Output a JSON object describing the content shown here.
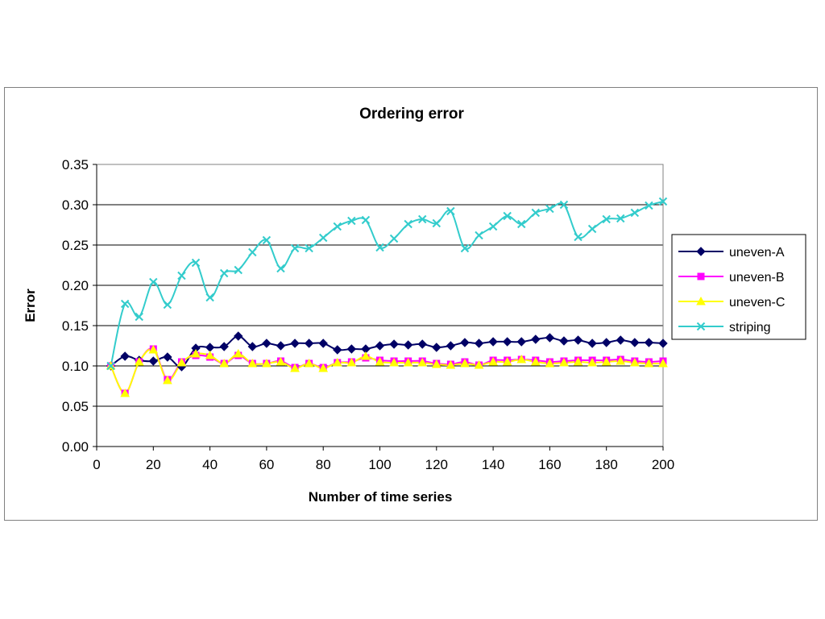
{
  "chart_data": {
    "type": "line",
    "title": "Ordering error",
    "xlabel": "Number of time series",
    "ylabel": "Error",
    "xlim": [
      0,
      200
    ],
    "ylim": [
      0,
      0.35
    ],
    "x_ticks": [
      "0",
      "20",
      "40",
      "60",
      "80",
      "100",
      "120",
      "140",
      "160",
      "180",
      "200"
    ],
    "y_ticks": [
      "0.00",
      "0.05",
      "0.10",
      "0.15",
      "0.20",
      "0.25",
      "0.30",
      "0.35"
    ],
    "grid": "horizontal",
    "legend_position": "right",
    "x": [
      5,
      10,
      15,
      20,
      25,
      30,
      35,
      40,
      45,
      50,
      55,
      60,
      65,
      70,
      75,
      80,
      85,
      90,
      95,
      100,
      105,
      110,
      115,
      120,
      125,
      130,
      135,
      140,
      145,
      150,
      155,
      160,
      165,
      170,
      175,
      180,
      185,
      190,
      195,
      200
    ],
    "series": [
      {
        "name": "uneven-A",
        "color": "#000066",
        "marker": "diamond",
        "values": [
          0.1,
          0.112,
          0.107,
          0.106,
          0.111,
          0.099,
          0.122,
          0.123,
          0.124,
          0.137,
          0.124,
          0.128,
          0.125,
          0.128,
          0.128,
          0.128,
          0.12,
          0.121,
          0.121,
          0.125,
          0.127,
          0.126,
          0.127,
          0.123,
          0.125,
          0.129,
          0.128,
          0.13,
          0.13,
          0.13,
          0.133,
          0.135,
          0.131,
          0.132,
          0.128,
          0.129,
          0.132,
          0.129,
          0.129,
          0.128
        ]
      },
      {
        "name": "uneven-B",
        "color": "#ff00ff",
        "marker": "square",
        "values": [
          0.1,
          0.066,
          0.105,
          0.121,
          0.083,
          0.105,
          0.113,
          0.111,
          0.103,
          0.113,
          0.103,
          0.103,
          0.106,
          0.098,
          0.103,
          0.098,
          0.104,
          0.105,
          0.11,
          0.107,
          0.106,
          0.106,
          0.106,
          0.103,
          0.102,
          0.105,
          0.101,
          0.107,
          0.107,
          0.108,
          0.107,
          0.105,
          0.106,
          0.107,
          0.107,
          0.107,
          0.108,
          0.106,
          0.105,
          0.106
        ]
      },
      {
        "name": "uneven-C",
        "color": "#ffff00",
        "marker": "triangle",
        "values": [
          0.1,
          0.066,
          0.105,
          0.12,
          0.082,
          0.104,
          0.115,
          0.113,
          0.103,
          0.115,
          0.103,
          0.103,
          0.105,
          0.097,
          0.103,
          0.097,
          0.104,
          0.104,
          0.112,
          0.105,
          0.104,
          0.104,
          0.104,
          0.102,
          0.101,
          0.103,
          0.101,
          0.105,
          0.105,
          0.108,
          0.105,
          0.103,
          0.104,
          0.105,
          0.104,
          0.105,
          0.106,
          0.104,
          0.103,
          0.103
        ]
      },
      {
        "name": "striping",
        "color": "#33cccc",
        "marker": "x",
        "values": [
          0.1,
          0.177,
          0.161,
          0.204,
          0.176,
          0.212,
          0.228,
          0.185,
          0.215,
          0.219,
          0.241,
          0.256,
          0.221,
          0.246,
          0.246,
          0.259,
          0.273,
          0.28,
          0.281,
          0.247,
          0.258,
          0.276,
          0.282,
          0.277,
          0.292,
          0.246,
          0.262,
          0.273,
          0.286,
          0.276,
          0.29,
          0.295,
          0.3,
          0.26,
          0.27,
          0.282,
          0.283,
          0.29,
          0.299,
          0.304
        ]
      }
    ]
  }
}
